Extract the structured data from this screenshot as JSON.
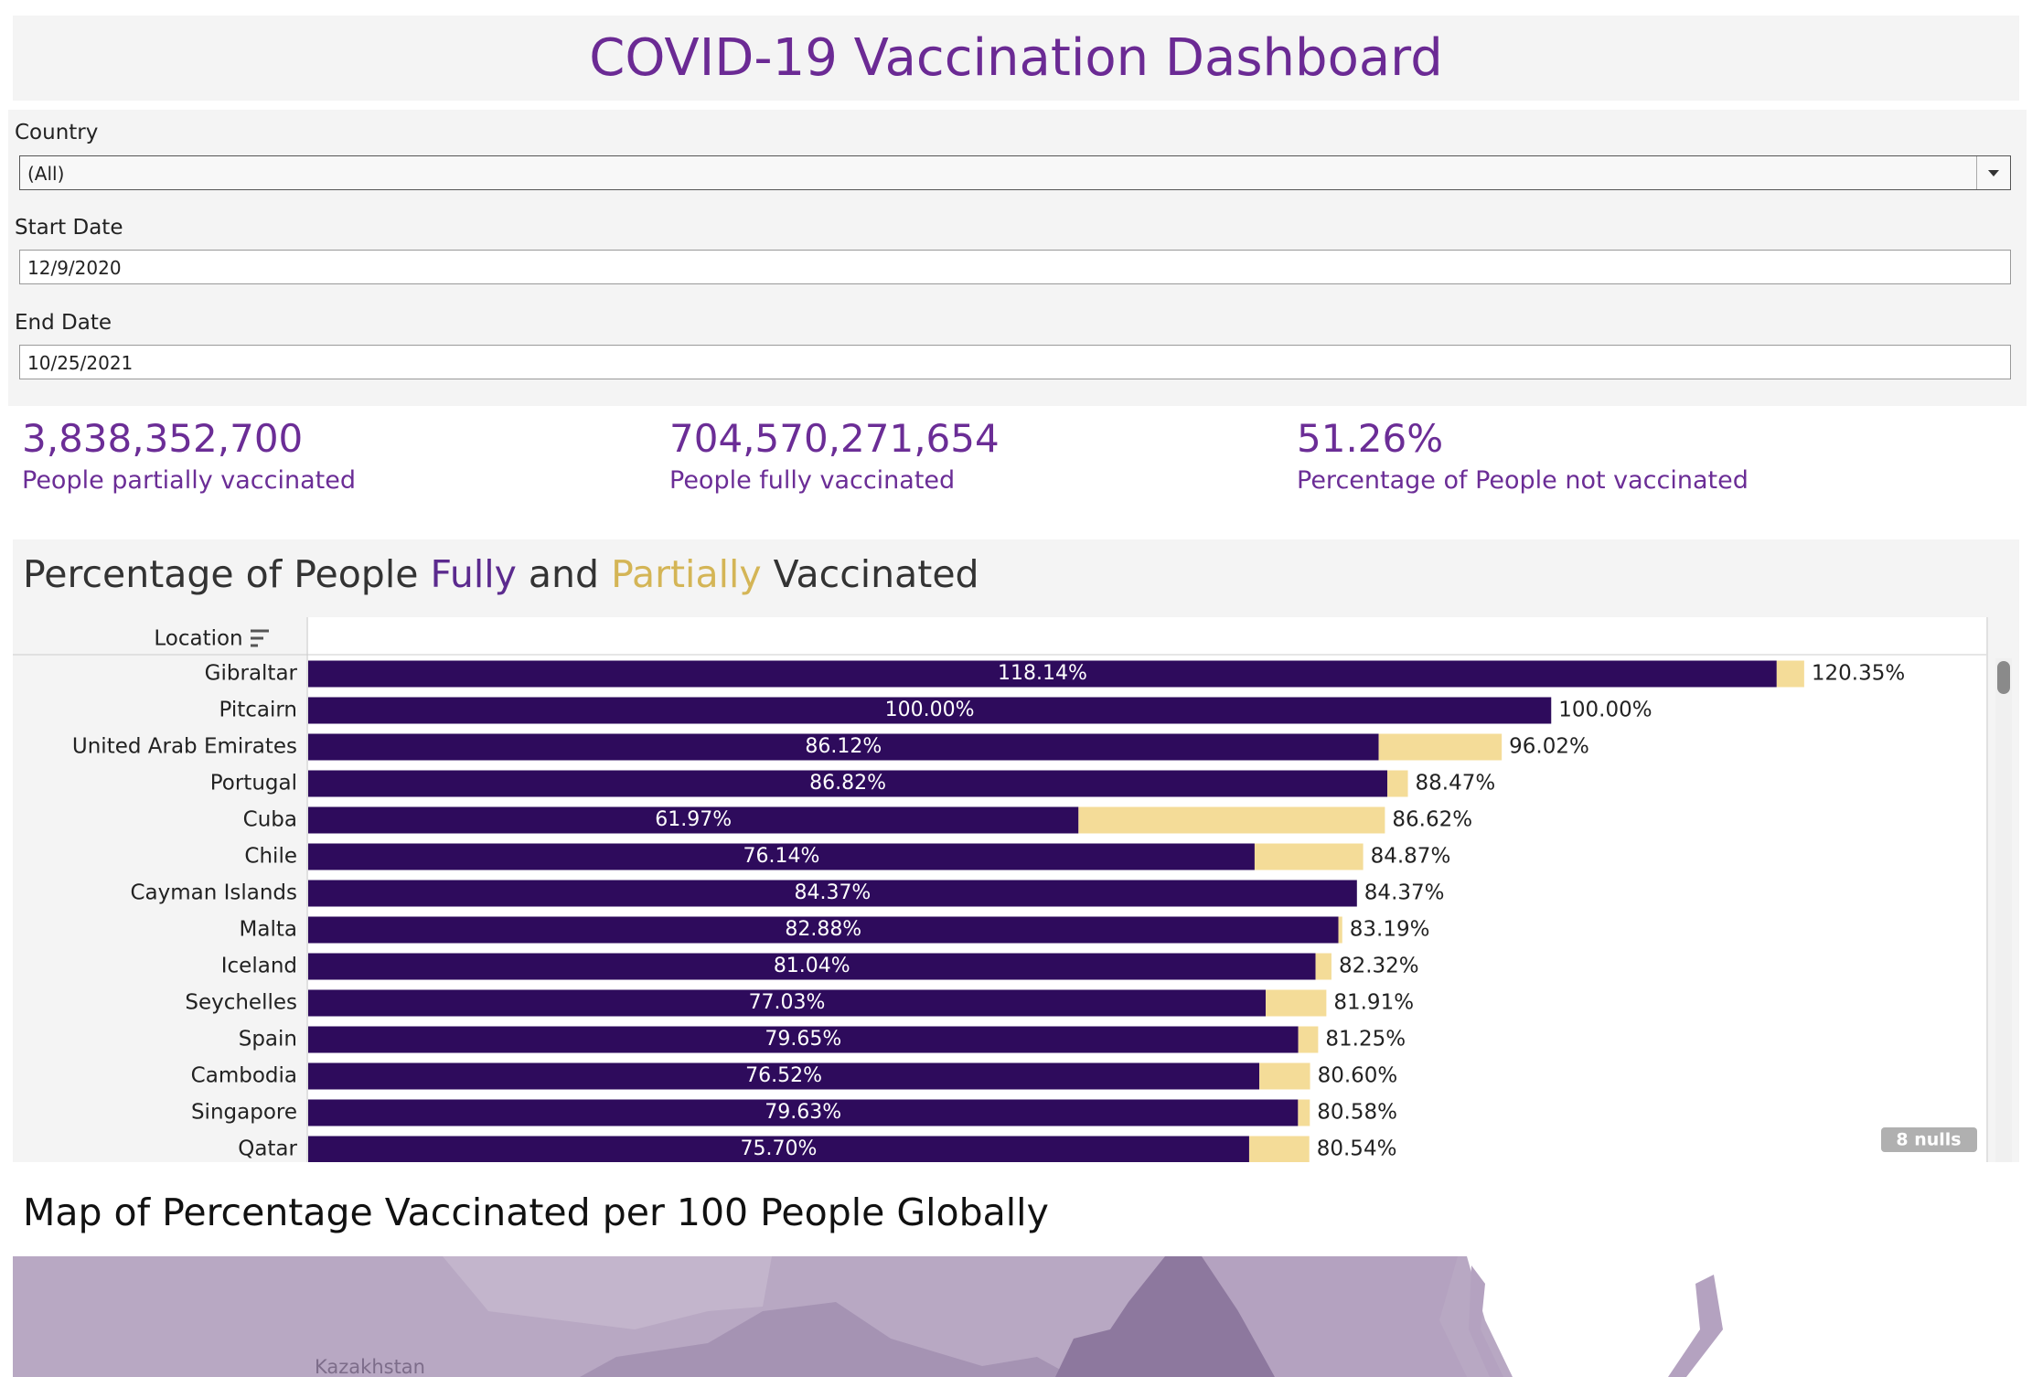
{
  "header": {
    "title": "COVID-19 Vaccination Dashboard"
  },
  "filters": [
    {
      "label": "Country",
      "value": "(All)"
    },
    {
      "label": "Start Date",
      "value": "12/9/2020"
    },
    {
      "label": "End Date",
      "value": "10/25/2021"
    }
  ],
  "kpis": [
    {
      "value": "3,838,352,700",
      "label": "People partially vaccinated"
    },
    {
      "value": "704,570,271,654",
      "label": "People fully vaccinated"
    },
    {
      "value": "51.26%",
      "label": "Percentage of People not vaccinated"
    }
  ],
  "chart_data": {
    "type": "bar",
    "orientation": "horizontal",
    "stacked": true,
    "title_parts": [
      "Percentage of People",
      "and",
      "Vaccinated"
    ],
    "axis_label": "Location",
    "categories": [
      "Gibraltar",
      "Pitcairn",
      "United Arab Emirates",
      "Portugal",
      "Cuba",
      "Chile",
      "Cayman Islands",
      "Malta",
      "Iceland",
      "Seychelles",
      "Spain",
      "Cambodia",
      "Singapore",
      "Qatar"
    ],
    "series": [
      {
        "name": "Fully",
        "color": "#2e0b5c",
        "values": [
          118.14,
          100.0,
          86.12,
          86.82,
          61.97,
          76.14,
          84.37,
          82.88,
          81.04,
          77.03,
          79.65,
          76.52,
          79.63,
          75.7
        ],
        "value_labels": [
          "118.14%",
          "100.00%",
          "86.12%",
          "86.82%",
          "61.97%",
          "76.14%",
          "84.37%",
          "82.88%",
          "81.04%",
          "77.03%",
          "79.65%",
          "76.52%",
          "79.63%",
          "75.70%"
        ]
      },
      {
        "name": "Partially",
        "color": "#f4dc98",
        "values": [
          2.21,
          0,
          9.9,
          1.65,
          24.65,
          8.73,
          0,
          0.31,
          1.28,
          4.88,
          1.6,
          4.08,
          0.95,
          4.84
        ]
      }
    ],
    "totals": [
      120.35,
      100.0,
      96.02,
      88.47,
      86.62,
      84.87,
      84.37,
      83.19,
      82.32,
      81.91,
      81.25,
      80.6,
      80.58,
      80.54
    ],
    "total_labels": [
      "120.35%",
      "100.00%",
      "96.02%",
      "88.47%",
      "86.62%",
      "84.87%",
      "84.37%",
      "83.19%",
      "82.32%",
      "81.91%",
      "81.25%",
      "80.60%",
      "80.58%",
      "80.54%"
    ],
    "xlim": [
      0,
      135
    ],
    "null_note": "8 nulls"
  },
  "map": {
    "title": "Map of Percentage Vaccinated per 100 People Globally",
    "labels": [
      "Kazakhstan"
    ]
  }
}
